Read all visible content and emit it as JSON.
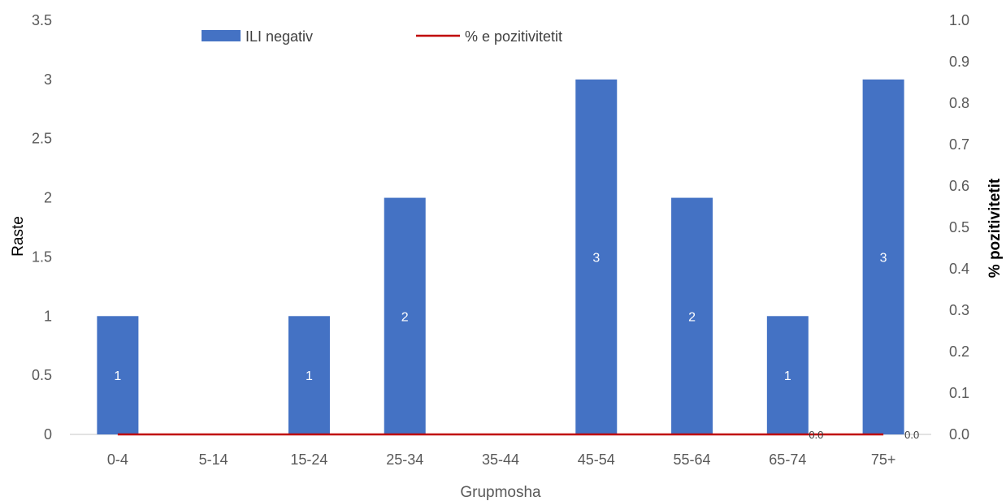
{
  "chart_data": {
    "type": "bar",
    "categories": [
      "0-4",
      "5-14",
      "15-24",
      "25-34",
      "35-44",
      "45-54",
      "55-64",
      "65-74",
      "75+"
    ],
    "series": [
      {
        "name": "ILI negativ",
        "kind": "bar",
        "axis": "left",
        "color": "#4472C4",
        "values": [
          1,
          0,
          1,
          2,
          0,
          3,
          2,
          1,
          3
        ],
        "data_labels": [
          "1",
          "",
          "1",
          "2",
          "",
          "3",
          "2",
          "1",
          "3"
        ]
      },
      {
        "name": "% e pozitivitetit",
        "kind": "line",
        "axis": "right",
        "color": "#C00000",
        "values": [
          0,
          0,
          0,
          0,
          0,
          0,
          0,
          0,
          0
        ],
        "data_labels": [
          "",
          "",
          "",
          "",
          "",
          "",
          "",
          "0.0",
          "0.0"
        ]
      }
    ],
    "xlabel": "Grupmosha",
    "ylabel": "Raste",
    "y2label": "% pozitivitetit",
    "ylim": [
      0,
      3.5
    ],
    "y2lim": [
      0,
      1.0
    ],
    "yticks": [
      "0",
      "0.5",
      "1",
      "1.5",
      "2",
      "2.5",
      "3",
      "3.5"
    ],
    "y2ticks": [
      "0.0",
      "0.1",
      "0.2",
      "0.3",
      "0.4",
      "0.5",
      "0.6",
      "0.7",
      "0.8",
      "0.9",
      "1.0"
    ],
    "grid": false,
    "legend_position": "top"
  }
}
